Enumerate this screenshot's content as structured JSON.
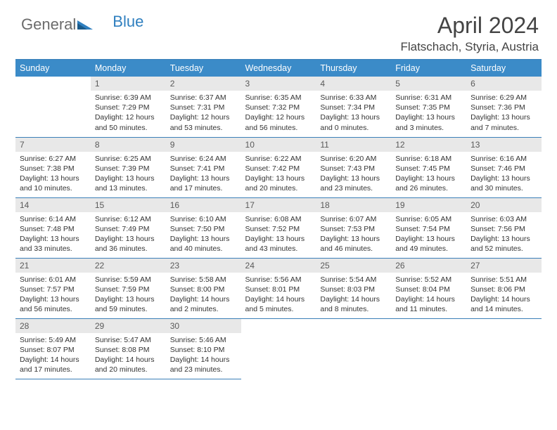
{
  "logo": {
    "text1": "General",
    "text2": "Blue"
  },
  "title": "April 2024",
  "location": "Flatschach, Styria, Austria",
  "colors": {
    "header_bg": "#3b8bc8",
    "header_text": "#ffffff",
    "daynum_bg": "#e8e8e8",
    "rule": "#3b7fb8",
    "accent": "#2f7fbf"
  },
  "weekdays": [
    "Sunday",
    "Monday",
    "Tuesday",
    "Wednesday",
    "Thursday",
    "Friday",
    "Saturday"
  ],
  "weeks": [
    [
      null,
      {
        "n": "1",
        "sr": "6:39 AM",
        "ss": "7:29 PM",
        "dl": "12 hours and 50 minutes."
      },
      {
        "n": "2",
        "sr": "6:37 AM",
        "ss": "7:31 PM",
        "dl": "12 hours and 53 minutes."
      },
      {
        "n": "3",
        "sr": "6:35 AM",
        "ss": "7:32 PM",
        "dl": "12 hours and 56 minutes."
      },
      {
        "n": "4",
        "sr": "6:33 AM",
        "ss": "7:34 PM",
        "dl": "13 hours and 0 minutes."
      },
      {
        "n": "5",
        "sr": "6:31 AM",
        "ss": "7:35 PM",
        "dl": "13 hours and 3 minutes."
      },
      {
        "n": "6",
        "sr": "6:29 AM",
        "ss": "7:36 PM",
        "dl": "13 hours and 7 minutes."
      }
    ],
    [
      {
        "n": "7",
        "sr": "6:27 AM",
        "ss": "7:38 PM",
        "dl": "13 hours and 10 minutes."
      },
      {
        "n": "8",
        "sr": "6:25 AM",
        "ss": "7:39 PM",
        "dl": "13 hours and 13 minutes."
      },
      {
        "n": "9",
        "sr": "6:24 AM",
        "ss": "7:41 PM",
        "dl": "13 hours and 17 minutes."
      },
      {
        "n": "10",
        "sr": "6:22 AM",
        "ss": "7:42 PM",
        "dl": "13 hours and 20 minutes."
      },
      {
        "n": "11",
        "sr": "6:20 AM",
        "ss": "7:43 PM",
        "dl": "13 hours and 23 minutes."
      },
      {
        "n": "12",
        "sr": "6:18 AM",
        "ss": "7:45 PM",
        "dl": "13 hours and 26 minutes."
      },
      {
        "n": "13",
        "sr": "6:16 AM",
        "ss": "7:46 PM",
        "dl": "13 hours and 30 minutes."
      }
    ],
    [
      {
        "n": "14",
        "sr": "6:14 AM",
        "ss": "7:48 PM",
        "dl": "13 hours and 33 minutes."
      },
      {
        "n": "15",
        "sr": "6:12 AM",
        "ss": "7:49 PM",
        "dl": "13 hours and 36 minutes."
      },
      {
        "n": "16",
        "sr": "6:10 AM",
        "ss": "7:50 PM",
        "dl": "13 hours and 40 minutes."
      },
      {
        "n": "17",
        "sr": "6:08 AM",
        "ss": "7:52 PM",
        "dl": "13 hours and 43 minutes."
      },
      {
        "n": "18",
        "sr": "6:07 AM",
        "ss": "7:53 PM",
        "dl": "13 hours and 46 minutes."
      },
      {
        "n": "19",
        "sr": "6:05 AM",
        "ss": "7:54 PM",
        "dl": "13 hours and 49 minutes."
      },
      {
        "n": "20",
        "sr": "6:03 AM",
        "ss": "7:56 PM",
        "dl": "13 hours and 52 minutes."
      }
    ],
    [
      {
        "n": "21",
        "sr": "6:01 AM",
        "ss": "7:57 PM",
        "dl": "13 hours and 56 minutes."
      },
      {
        "n": "22",
        "sr": "5:59 AM",
        "ss": "7:59 PM",
        "dl": "13 hours and 59 minutes."
      },
      {
        "n": "23",
        "sr": "5:58 AM",
        "ss": "8:00 PM",
        "dl": "14 hours and 2 minutes."
      },
      {
        "n": "24",
        "sr": "5:56 AM",
        "ss": "8:01 PM",
        "dl": "14 hours and 5 minutes."
      },
      {
        "n": "25",
        "sr": "5:54 AM",
        "ss": "8:03 PM",
        "dl": "14 hours and 8 minutes."
      },
      {
        "n": "26",
        "sr": "5:52 AM",
        "ss": "8:04 PM",
        "dl": "14 hours and 11 minutes."
      },
      {
        "n": "27",
        "sr": "5:51 AM",
        "ss": "8:06 PM",
        "dl": "14 hours and 14 minutes."
      }
    ],
    [
      {
        "n": "28",
        "sr": "5:49 AM",
        "ss": "8:07 PM",
        "dl": "14 hours and 17 minutes."
      },
      {
        "n": "29",
        "sr": "5:47 AM",
        "ss": "8:08 PM",
        "dl": "14 hours and 20 minutes."
      },
      {
        "n": "30",
        "sr": "5:46 AM",
        "ss": "8:10 PM",
        "dl": "14 hours and 23 minutes."
      },
      null,
      null,
      null,
      null
    ]
  ]
}
